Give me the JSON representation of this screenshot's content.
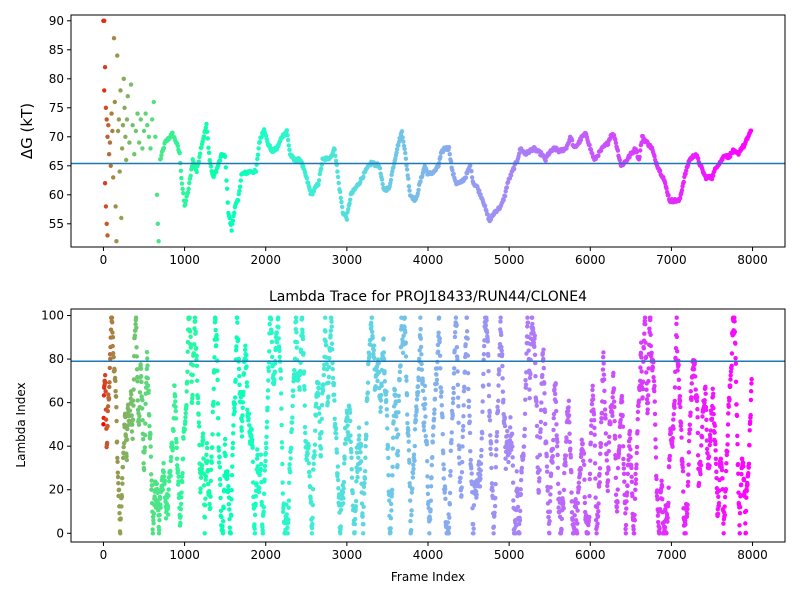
{
  "chart_data": [
    {
      "type": "scatter",
      "title": "",
      "xlabel": "",
      "ylabel": "ΔG (kT)",
      "xlim": [
        -400,
        8400
      ],
      "ylim": [
        51,
        91
      ],
      "xticks": [
        0,
        1000,
        2000,
        3000,
        4000,
        5000,
        6000,
        7000,
        8000
      ],
      "yticks": [
        55,
        60,
        65,
        70,
        75,
        80,
        85,
        90
      ],
      "hline": 65.4,
      "colormap": "rainbow",
      "grid": false,
      "x_range": [
        0,
        7990
      ],
      "trace_anchors": [
        [
          700,
          66
        ],
        [
          760,
          69
        ],
        [
          850,
          70.5
        ],
        [
          900,
          69
        ],
        [
          940,
          67
        ],
        [
          960,
          63
        ],
        [
          1000,
          58
        ],
        [
          1050,
          61
        ],
        [
          1100,
          66
        ],
        [
          1150,
          64
        ],
        [
          1200,
          68
        ],
        [
          1270,
          72
        ],
        [
          1310,
          66
        ],
        [
          1350,
          63
        ],
        [
          1400,
          64.5
        ],
        [
          1460,
          67
        ],
        [
          1500,
          66.5
        ],
        [
          1540,
          57
        ],
        [
          1580,
          54
        ],
        [
          1620,
          58
        ],
        [
          1660,
          59
        ],
        [
          1700,
          63.5
        ],
        [
          1800,
          64
        ],
        [
          1880,
          64
        ],
        [
          1920,
          69
        ],
        [
          1980,
          71.5
        ],
        [
          2020,
          69
        ],
        [
          2080,
          67.5
        ],
        [
          2140,
          68
        ],
        [
          2200,
          70
        ],
        [
          2260,
          71
        ],
        [
          2300,
          67
        ],
        [
          2350,
          66
        ],
        [
          2430,
          66
        ],
        [
          2500,
          63
        ],
        [
          2560,
          60
        ],
        [
          2650,
          62
        ],
        [
          2700,
          66
        ],
        [
          2800,
          66.5
        ],
        [
          2850,
          68
        ],
        [
          2900,
          62
        ],
        [
          2950,
          57
        ],
        [
          3000,
          56
        ],
        [
          3050,
          60
        ],
        [
          3150,
          62
        ],
        [
          3250,
          64.5
        ],
        [
          3300,
          65.5
        ],
        [
          3400,
          65
        ],
        [
          3450,
          61
        ],
        [
          3520,
          61
        ],
        [
          3560,
          64
        ],
        [
          3620,
          68
        ],
        [
          3680,
          71
        ],
        [
          3720,
          67
        ],
        [
          3780,
          60
        ],
        [
          3850,
          59
        ],
        [
          3900,
          62
        ],
        [
          3960,
          65
        ],
        [
          4000,
          63.5
        ],
        [
          4080,
          64
        ],
        [
          4130,
          65
        ],
        [
          4160,
          67
        ],
        [
          4200,
          68
        ],
        [
          4260,
          68
        ],
        [
          4300,
          64
        ],
        [
          4350,
          62
        ],
        [
          4400,
          62
        ],
        [
          4460,
          63
        ],
        [
          4520,
          65
        ],
        [
          4560,
          62
        ],
        [
          4600,
          61.5
        ],
        [
          4680,
          59
        ],
        [
          4720,
          57
        ],
        [
          4760,
          55.5
        ],
        [
          4820,
          57
        ],
        [
          4900,
          58
        ],
        [
          4950,
          60
        ],
        [
          4980,
          62
        ],
        [
          5040,
          64
        ],
        [
          5100,
          66
        ],
        [
          5140,
          68
        ],
        [
          5200,
          67
        ],
        [
          5300,
          68
        ],
        [
          5400,
          67
        ],
        [
          5450,
          66
        ],
        [
          5480,
          67
        ],
        [
          5560,
          68
        ],
        [
          5620,
          67.5
        ],
        [
          5700,
          68
        ],
        [
          5760,
          70
        ],
        [
          5800,
          68
        ],
        [
          5860,
          69
        ],
        [
          5900,
          70
        ],
        [
          5950,
          70.5
        ],
        [
          6000,
          68
        ],
        [
          6050,
          66
        ],
        [
          6100,
          67
        ],
        [
          6150,
          68
        ],
        [
          6220,
          69
        ],
        [
          6260,
          70.5
        ],
        [
          6300,
          70
        ],
        [
          6380,
          65
        ],
        [
          6450,
          66
        ],
        [
          6500,
          67
        ],
        [
          6560,
          68
        ],
        [
          6600,
          66
        ],
        [
          6640,
          70
        ],
        [
          6700,
          69
        ],
        [
          6760,
          68
        ],
        [
          6800,
          66
        ],
        [
          6860,
          64
        ],
        [
          6900,
          63
        ],
        [
          6940,
          61
        ],
        [
          6980,
          59
        ],
        [
          7050,
          59
        ],
        [
          7100,
          59
        ],
        [
          7160,
          63
        ],
        [
          7220,
          66
        ],
        [
          7300,
          67
        ],
        [
          7360,
          65
        ],
        [
          7420,
          63
        ],
        [
          7500,
          63
        ],
        [
          7560,
          65
        ],
        [
          7620,
          66
        ],
        [
          7660,
          67
        ],
        [
          7700,
          66.5
        ],
        [
          7760,
          67.5
        ],
        [
          7820,
          67
        ],
        [
          7860,
          68
        ],
        [
          7900,
          68.5
        ],
        [
          7960,
          70.5
        ],
        [
          7990,
          71
        ]
      ],
      "early_points": [
        [
          0,
          90
        ],
        [
          10,
          90
        ],
        [
          20,
          82
        ],
        [
          30,
          75
        ],
        [
          40,
          73
        ],
        [
          50,
          70
        ],
        [
          10,
          78
        ],
        [
          20,
          62
        ],
        [
          30,
          58
        ],
        [
          40,
          55
        ],
        [
          50,
          53
        ],
        [
          60,
          72
        ],
        [
          70,
          67
        ],
        [
          80,
          69
        ],
        [
          90,
          65
        ],
        [
          100,
          74
        ],
        [
          110,
          71
        ],
        [
          120,
          63
        ],
        [
          130,
          87
        ],
        [
          140,
          76
        ],
        [
          150,
          58
        ],
        [
          160,
          52
        ],
        [
          170,
          84
        ],
        [
          180,
          71
        ],
        [
          190,
          73
        ],
        [
          200,
          64
        ],
        [
          210,
          78
        ],
        [
          220,
          56
        ],
        [
          230,
          68
        ],
        [
          240,
          72
        ],
        [
          250,
          80
        ],
        [
          260,
          75
        ],
        [
          270,
          70
        ],
        [
          280,
          66
        ],
        [
          290,
          73
        ],
        [
          300,
          77
        ],
        [
          320,
          69
        ],
        [
          340,
          79
        ],
        [
          360,
          72
        ],
        [
          380,
          67
        ],
        [
          400,
          71
        ],
        [
          420,
          74
        ],
        [
          440,
          69
        ],
        [
          460,
          73
        ],
        [
          480,
          68
        ],
        [
          500,
          71
        ],
        [
          520,
          74
        ],
        [
          540,
          72
        ],
        [
          560,
          70
        ],
        [
          580,
          68
        ],
        [
          600,
          73
        ],
        [
          620,
          76
        ],
        [
          640,
          70
        ],
        [
          660,
          60
        ],
        [
          670,
          55
        ],
        [
          680,
          52
        ]
      ]
    },
    {
      "type": "scatter",
      "title": "Lambda Trace for PROJ18433/RUN44/CLONE4",
      "xlabel": "Frame Index",
      "ylabel": "Lambda Index",
      "xlim": [
        -400,
        8400
      ],
      "ylim": [
        -4,
        103
      ],
      "xticks": [
        0,
        1000,
        2000,
        3000,
        4000,
        5000,
        6000,
        7000,
        8000
      ],
      "yticks": [
        0,
        20,
        40,
        60,
        80,
        100
      ],
      "hline": 79,
      "colormap": "rainbow",
      "grid": false,
      "x_range": [
        0,
        7990
      ],
      "lambda_range": [
        0,
        99
      ]
    }
  ]
}
